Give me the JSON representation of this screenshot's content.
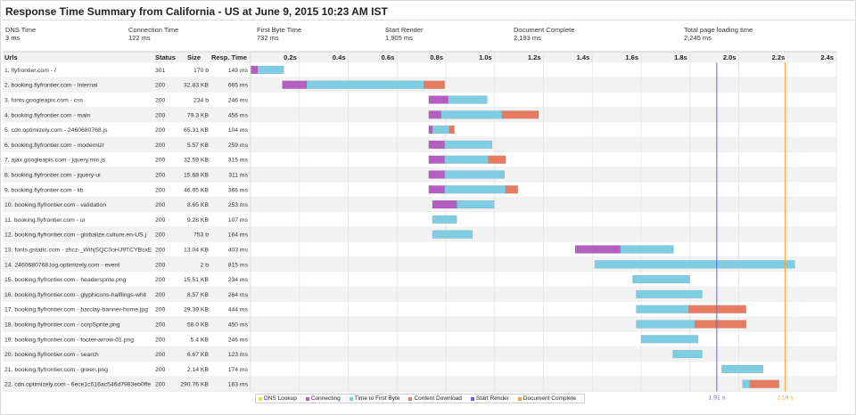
{
  "page": {
    "title": "Response Time Summary from California - US at June 9, 2015 10:23 AM IST"
  },
  "summary": [
    {
      "label": "DNS Time",
      "value": "3 ms"
    },
    {
      "label": "Connection Time",
      "value": "122 ms"
    },
    {
      "label": "First Byte Time",
      "value": "732 ms"
    },
    {
      "label": "Start Render",
      "value": "1,905 ms"
    },
    {
      "label": "Document Complete",
      "value": "2,193 ms"
    },
    {
      "label": "Total page loading time",
      "value": "2,245 ms"
    }
  ],
  "colors": {
    "dns": "#e8d94a",
    "connect": "#b45ec1",
    "ttfb": "#7ecde2",
    "download": "#e77b60",
    "start_render": "#6b5cf0",
    "doc_complete": "#f0a33c"
  },
  "chart_data": {
    "type": "bar",
    "columns": [
      "Urls",
      "Status",
      "Size",
      "Resp. Time"
    ],
    "x_ticks": [
      "0.2s",
      "0.4s",
      "0.6s",
      "0.8s",
      "1.0s",
      "1.2s",
      "1.4s",
      "1.6s",
      "1.8s",
      "2.0s",
      "2.2s",
      "2.4s"
    ],
    "xlim": [
      0,
      2.4
    ],
    "markers": [
      {
        "name": "Start Render",
        "x": 1.91,
        "label": "1.91 s"
      },
      {
        "name": "Document Complete",
        "x": 2.19,
        "label": "2.19 s"
      }
    ],
    "legend": [
      "DNS Lookup",
      "Connecting",
      "Time to First Byte",
      "Content Download",
      "Start Render",
      "Document Complete"
    ],
    "rows": [
      {
        "url": "1. flyfrontier.com - /",
        "status": "301",
        "size": "170 b",
        "resp": "149 ms",
        "start": 0.0,
        "dns": 0.003,
        "connect": 0.026,
        "ttfb": 0.107,
        "download": 0.0
      },
      {
        "url": "2. booking.flyfrontier.com - Internal",
        "status": "200",
        "size": "32.83 KB",
        "resp": "665 ms",
        "start": 0.13,
        "dns": 0.0,
        "connect": 0.1,
        "ttfb": 0.48,
        "download": 0.085
      },
      {
        "url": "3. fonts.googleapis.com - css",
        "status": "200",
        "size": "234 b",
        "resp": "246 ms",
        "start": 0.73,
        "dns": 0.0,
        "connect": 0.08,
        "ttfb": 0.16,
        "download": 0.0
      },
      {
        "url": "4. booking.flyfrontier.com - main",
        "status": "200",
        "size": "79.3 KB",
        "resp": "456 ms",
        "start": 0.73,
        "dns": 0.0,
        "connect": 0.05,
        "ttfb": 0.25,
        "download": 0.15
      },
      {
        "url": "5. cdn.optimizely.com - 2460680768.js",
        "status": "200",
        "size": "65.31 KB",
        "resp": "104 ms",
        "start": 0.73,
        "dns": 0.0,
        "connect": 0.015,
        "ttfb": 0.07,
        "download": 0.02
      },
      {
        "url": "6. booking.flyfrontier.com - modernizr",
        "status": "200",
        "size": "5.57 KB",
        "resp": "259 ms",
        "start": 0.73,
        "dns": 0.0,
        "connect": 0.065,
        "ttfb": 0.195,
        "download": 0.0
      },
      {
        "url": "7. ajax.googleapis.com - jquery.min.js",
        "status": "200",
        "size": "32.59 KB",
        "resp": "315 ms",
        "start": 0.73,
        "dns": 0.0,
        "connect": 0.065,
        "ttfb": 0.18,
        "download": 0.07
      },
      {
        "url": "8. booking.flyfrontier.com - jquery-ui",
        "status": "200",
        "size": "15.68 KB",
        "resp": "311 ms",
        "start": 0.73,
        "dns": 0.0,
        "connect": 0.065,
        "ttfb": 0.245,
        "download": 0.0
      },
      {
        "url": "9. booking.flyfrontier.com - lib",
        "status": "200",
        "size": "46.95 KB",
        "resp": "366 ms",
        "start": 0.73,
        "dns": 0.0,
        "connect": 0.065,
        "ttfb": 0.25,
        "download": 0.05
      },
      {
        "url": "10. booking.flyfrontier.com - validation",
        "status": "200",
        "size": "8.65 KB",
        "resp": "253 ms",
        "start": 0.745,
        "dns": 0.0,
        "connect": 0.1,
        "ttfb": 0.153,
        "download": 0.0
      },
      {
        "url": "11. booking.flyfrontier.com - ui",
        "status": "200",
        "size": "9.28 KB",
        "resp": "107 ms",
        "start": 0.745,
        "dns": 0.0,
        "connect": 0.0,
        "ttfb": 0.1,
        "download": 0.0
      },
      {
        "url": "12. booking.flyfrontier.com - globalize.culture.en-US.j",
        "status": "200",
        "size": "753 b",
        "resp": "164 ms",
        "start": 0.745,
        "dns": 0.0,
        "connect": 0.0,
        "ttfb": 0.164,
        "download": 0.0
      },
      {
        "url": "13. fonts.gstatic.com - zhcz-_WihjSQC0oHJ9TCYBsxE",
        "status": "200",
        "size": "13.04 KB",
        "resp": "403 ms",
        "start": 1.33,
        "dns": 0.0,
        "connect": 0.185,
        "ttfb": 0.218,
        "download": 0.0
      },
      {
        "url": "14. 2460680768.log.optimizely.com - event",
        "status": "200",
        "size": "2 b",
        "resp": "815 ms",
        "start": 1.41,
        "dns": 0.0,
        "connect": 0.0,
        "ttfb": 0.82,
        "download": 0.0
      },
      {
        "url": "15. booking.flyfrontier.com - headersprite.png",
        "status": "200",
        "size": "15.51 KB",
        "resp": "234 ms",
        "start": 1.565,
        "dns": 0.0,
        "connect": 0.0,
        "ttfb": 0.234,
        "download": 0.0
      },
      {
        "url": "16. booking.flyfrontier.com - glyphicons-halflings-whit",
        "status": "200",
        "size": "8.57 KB",
        "resp": "264 ms",
        "start": 1.58,
        "dns": 0.0,
        "connect": 0.0,
        "ttfb": 0.27,
        "download": 0.0
      },
      {
        "url": "17. booking.flyfrontier.com - barclay-banner-home.jpg",
        "status": "200",
        "size": "29.39 KB",
        "resp": "444 ms",
        "start": 1.58,
        "dns": 0.0,
        "connect": 0.0,
        "ttfb": 0.215,
        "download": 0.235
      },
      {
        "url": "18. booking.flyfrontier.com - corpSprite.png",
        "status": "200",
        "size": "58.0 KB",
        "resp": "450 ms",
        "start": 1.58,
        "dns": 0.0,
        "connect": 0.0,
        "ttfb": 0.24,
        "download": 0.21
      },
      {
        "url": "19. booking.flyfrontier.com - footer-arrow-01.png",
        "status": "200",
        "size": "5.4 KB",
        "resp": "246 ms",
        "start": 1.6,
        "dns": 0.0,
        "connect": 0.0,
        "ttfb": 0.233,
        "download": 0.0
      },
      {
        "url": "20. booking.flyfrontier.com - search",
        "status": "200",
        "size": "6.67 KB",
        "resp": "123 ms",
        "start": 1.73,
        "dns": 0.0,
        "connect": 0.0,
        "ttfb": 0.12,
        "download": 0.0
      },
      {
        "url": "21. booking.flyfrontier.com - green.png",
        "status": "200",
        "size": "2.14 KB",
        "resp": "174 ms",
        "start": 1.93,
        "dns": 0.0,
        "connect": 0.0,
        "ttfb": 0.17,
        "download": 0.0
      },
      {
        "url": "22. cdn.optimizely.com - 6ece1c516ac546d7983eb0ffe",
        "status": "200",
        "size": "290.76 KB",
        "resp": "163 ms",
        "start": 2.015,
        "dns": 0.0,
        "connect": 0.0,
        "ttfb": 0.03,
        "download": 0.12
      }
    ]
  }
}
